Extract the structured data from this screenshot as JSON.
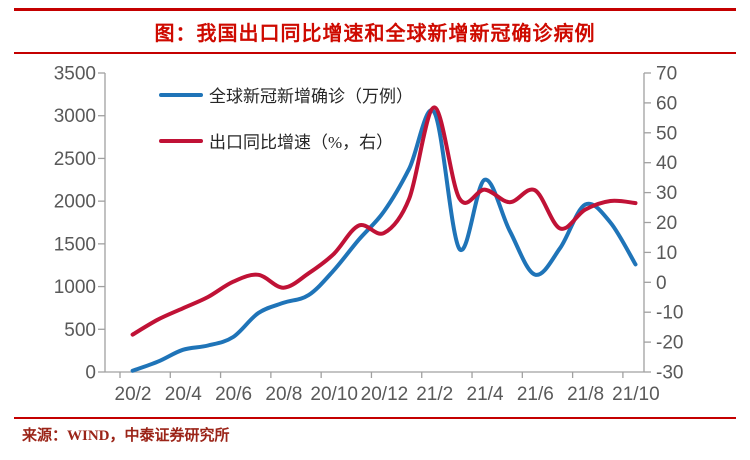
{
  "header": {
    "title": "图：我国出口同比增速和全球新增新冠确诊病例"
  },
  "footer": {
    "source": "来源：WIND，中泰证券研究所"
  },
  "colors": {
    "accent_red": "#C40000",
    "title_red": "#CE0A00",
    "line_blue": "#1F74B8",
    "line_red": "#C01236",
    "axis_text": "#595959",
    "axis_line": "#A0A0A0",
    "source_text": "#9B2418"
  },
  "chart_data": {
    "type": "line",
    "title": "图：我国出口同比增速和全球新增新冠确诊病例",
    "smoothed": true,
    "grid": false,
    "legend_position": "top-left",
    "categories": [
      "20/2",
      "20/3",
      "20/4",
      "20/5",
      "20/6",
      "20/7",
      "20/8",
      "20/9",
      "20/10",
      "20/11",
      "20/12",
      "21/1",
      "21/2",
      "21/3",
      "21/4",
      "21/5",
      "21/6",
      "21/7",
      "21/8",
      "21/9",
      "21/10"
    ],
    "x_tick_labels": [
      "20/2",
      "20/4",
      "20/6",
      "20/8",
      "20/10",
      "20/12",
      "21/2",
      "21/4",
      "21/6",
      "21/8",
      "21/10"
    ],
    "series": [
      {
        "name": "全球新冠新增确诊（万例）",
        "axis": "left",
        "color_key": "line_blue",
        "values": [
          15,
          120,
          260,
          310,
          410,
          690,
          810,
          900,
          1190,
          1550,
          1880,
          2380,
          3040,
          1440,
          2250,
          1650,
          1140,
          1450,
          1960,
          1750,
          1260
        ]
      },
      {
        "name": "出口同比增速（%，右）",
        "axis": "right",
        "color_key": "line_red",
        "values": [
          -17.5,
          -12.5,
          -8.7,
          -4.9,
          0.2,
          2.5,
          -1.8,
          3.0,
          9.5,
          19.0,
          16.5,
          28.0,
          58.5,
          28.0,
          31.0,
          26.8,
          30.8,
          18.0,
          24.3,
          27.2,
          26.5
        ]
      }
    ],
    "left_axis": {
      "min": 0,
      "max": 3500,
      "step": 500,
      "tick_labels": [
        "0",
        "500",
        "1000",
        "1500",
        "2000",
        "2500",
        "3000",
        "3500"
      ]
    },
    "right_axis": {
      "min": -30,
      "max": 70,
      "step": 10,
      "tick_labels": [
        "-30",
        "-20",
        "-10",
        "0",
        "10",
        "20",
        "30",
        "40",
        "50",
        "60",
        "70"
      ]
    }
  }
}
